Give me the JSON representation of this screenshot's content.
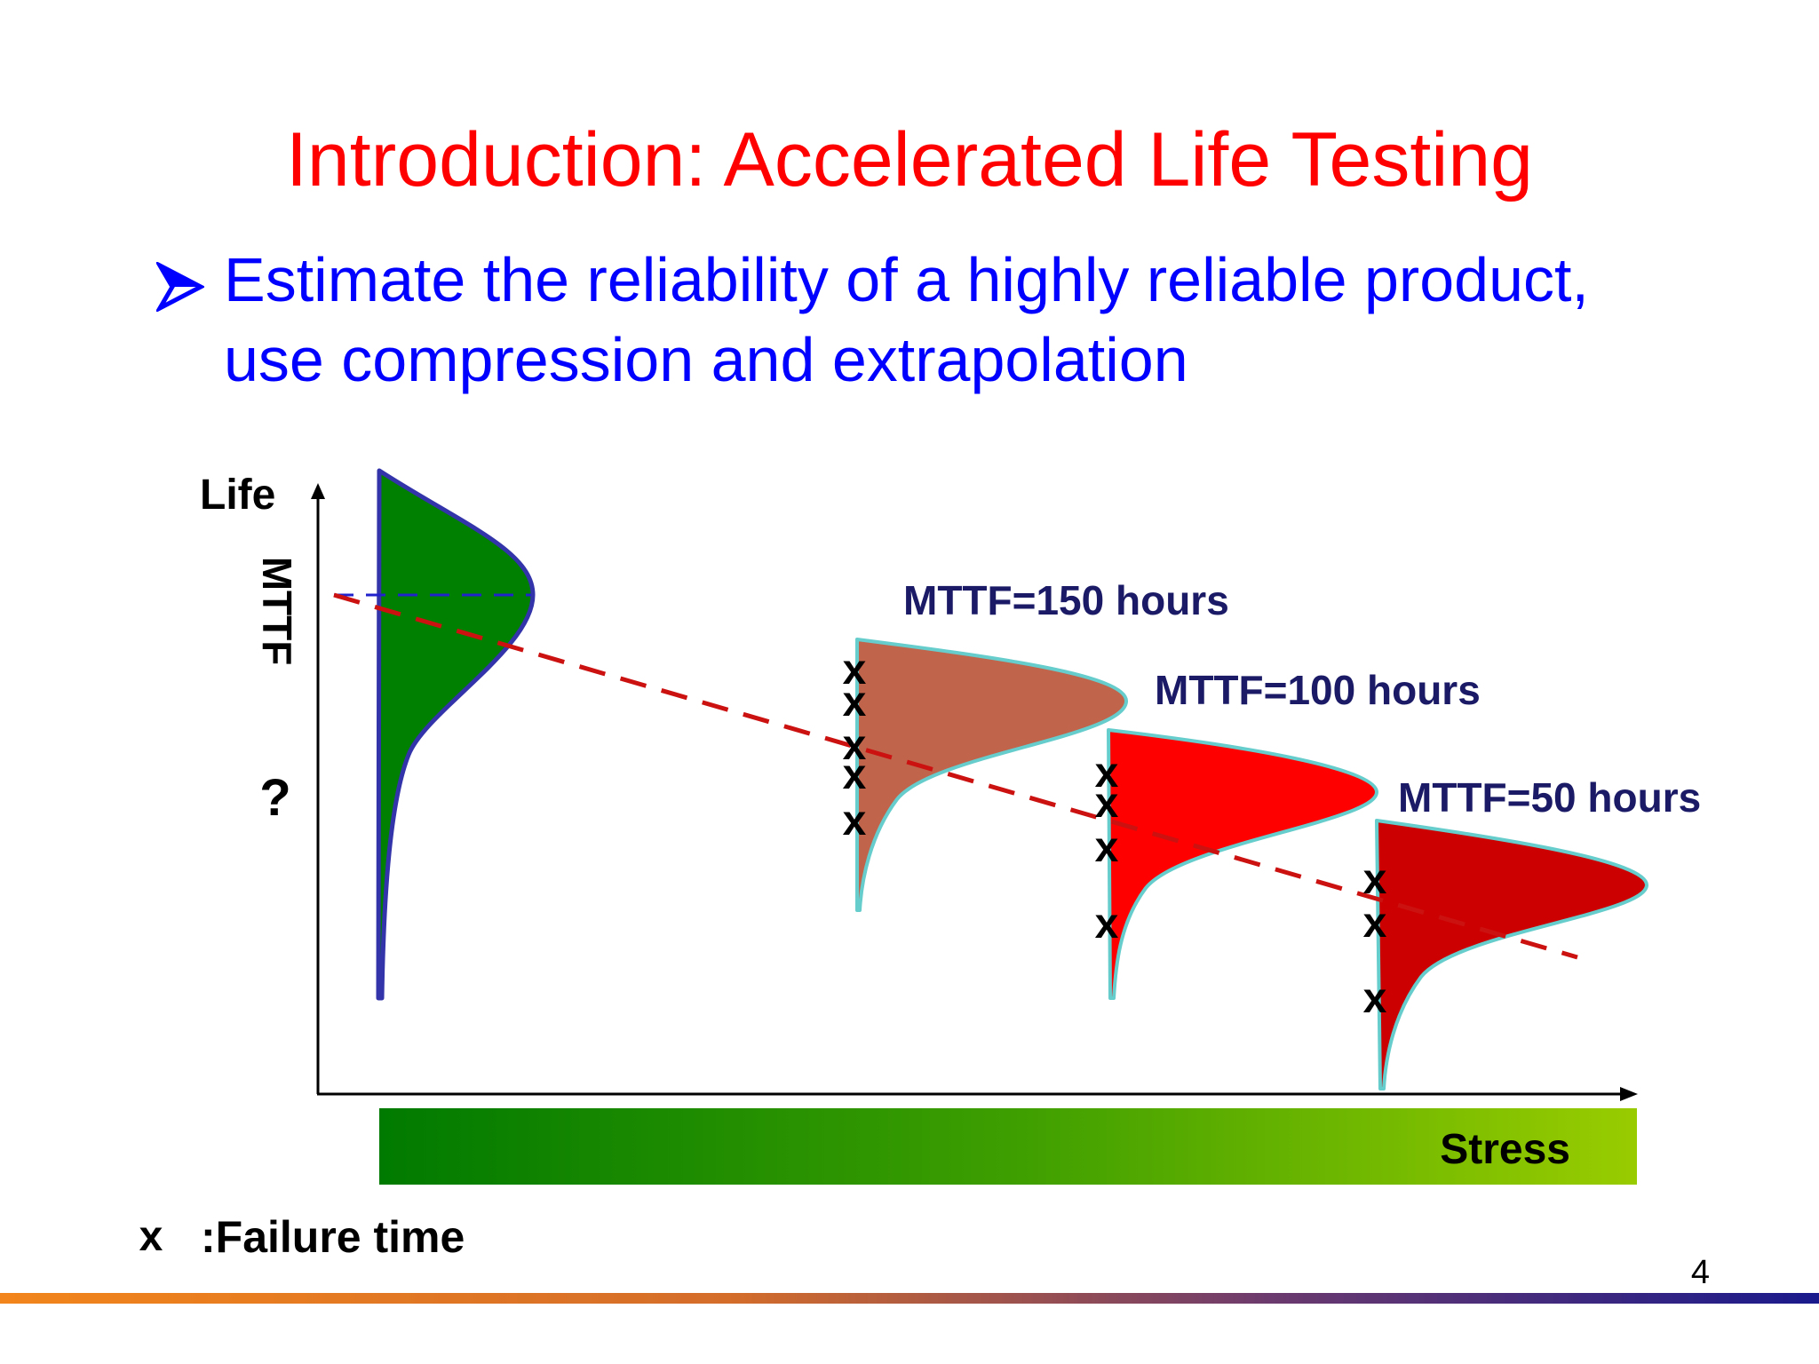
{
  "slide": {
    "title": "Introduction: Accelerated Life Testing",
    "bullet_lines": [
      "Estimate the reliability of a highly reliable product,",
      "use compression and extrapolation"
    ],
    "page_number": "4"
  },
  "diagram": {
    "y_axis_label": "Life",
    "mttf_label": "MTTF",
    "question_mark": "?",
    "x_axis_label": "Stress",
    "legend_symbol": "x",
    "legend_text": ":Failure time",
    "distributions": [
      {
        "label": "MTTF=150 hours",
        "color": "#c0644b",
        "failure_marks": 5
      },
      {
        "label": "MTTF=100 hours",
        "color": "#ff0000",
        "failure_marks": 4
      },
      {
        "label": "MTTF=50 hours",
        "color": "#cc0000",
        "failure_marks": 3
      }
    ],
    "colors": {
      "use_distribution": "#008000",
      "use_outline": "#3333aa",
      "stress_outline": "#66cccc",
      "trend_line": "#cc1111",
      "stress_bar_start": "#007a00",
      "stress_bar_end": "#99cc00",
      "label_navy": "#1a1a66"
    }
  }
}
